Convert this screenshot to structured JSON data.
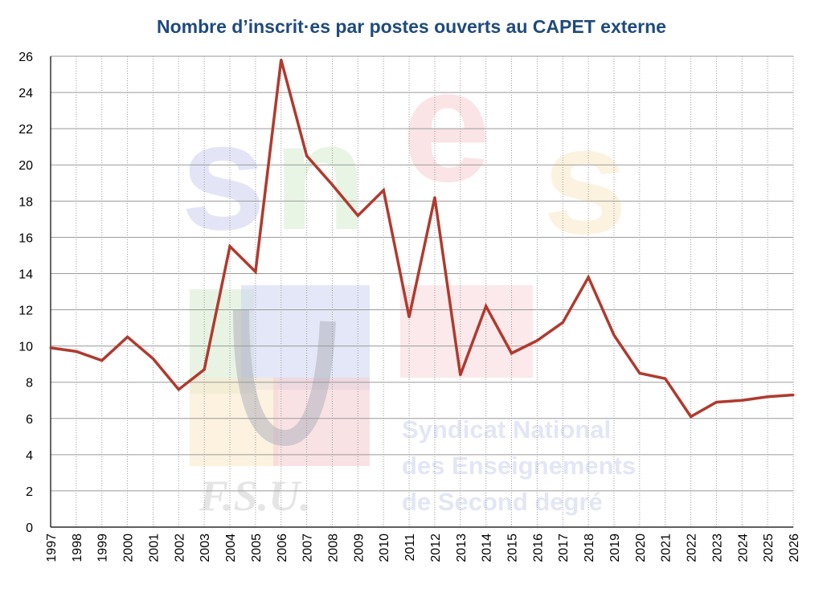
{
  "chart_data": {
    "type": "line",
    "title": "Nombre d’inscrit·es par postes ouverts au CAPET externe",
    "xlabel": "",
    "ylabel": "",
    "ylim": [
      0,
      26
    ],
    "yticks": [
      "0",
      "2",
      "4",
      "6",
      "8",
      "10",
      "12",
      "14",
      "16",
      "18",
      "20",
      "22",
      "24",
      "26"
    ],
    "categories": [
      "1997",
      "1998",
      "1999",
      "2000",
      "2001",
      "2002",
      "2003",
      "2004",
      "2005",
      "2006",
      "2007",
      "2008",
      "2009",
      "2010",
      "2011",
      "2012",
      "2013",
      "2014",
      "2015",
      "2016",
      "2017",
      "2018",
      "2019",
      "2020",
      "2021",
      "2022",
      "2023",
      "2024",
      "2025",
      "2026"
    ],
    "series": [
      {
        "color": "#b03a2e",
        "values": [
          9.9,
          9.7,
          9.2,
          10.5,
          9.3,
          7.6,
          8.7,
          15.5,
          14.1,
          25.8,
          20.5,
          18.9,
          17.2,
          18.6,
          11.6,
          18.2,
          8.4,
          12.2,
          9.6,
          10.3,
          11.3,
          13.8,
          10.6,
          8.5,
          8.2,
          6.1,
          6.9,
          7.0,
          7.2,
          7.3
        ]
      }
    ],
    "grid": true,
    "legend": "none"
  },
  "watermark": {
    "logo_letters": [
      "s",
      "n",
      "e",
      "s"
    ],
    "union_lines": [
      "Syndicat National",
      "des Enseignements",
      "de Second degré"
    ],
    "federation": "F.S.U."
  },
  "colors": {
    "title": "#1f4a7e",
    "line": "#b03a2e",
    "grid": "#9a9a9a"
  }
}
